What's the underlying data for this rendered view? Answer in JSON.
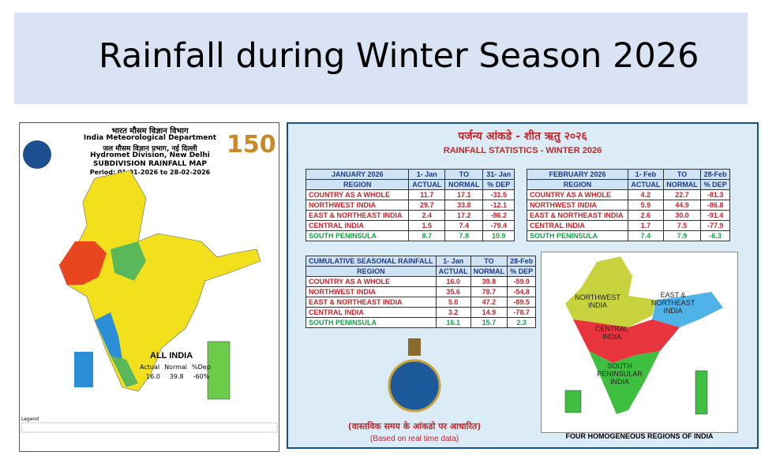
{
  "header": {
    "title": "Rainfall during Winter Season 2026"
  },
  "map_panel": {
    "hindi_org": "भारत मौसम विज्ञान विभाग",
    "org": "India Meteorological Department",
    "hindi_division": "जल मौसम विज्ञान प्रभाग, नई दिल्ली",
    "division": "Hydromet Division, New Delhi",
    "map_title": "SUBDIVISION RAINFALL MAP",
    "period": "Period: 01-01-2026 to 28-02-2026",
    "logo": "150",
    "all_india": {
      "label": "ALL INDIA",
      "columns": [
        "Actual",
        "Normal",
        "%Dep"
      ],
      "values": [
        "16.0",
        "39.8",
        "-60%"
      ]
    },
    "legend_title": "Legend"
  },
  "stats_panel": {
    "hindi_title": "पर्जन्य आंकडे - शीत ऋतु २०२६",
    "title": "RAINFALL STATISTICS -  WINTER 2026",
    "tables": [
      {
        "title": "JANUARY 2026",
        "from": "1- Jan",
        "to": "TO",
        "until": "31- Jan",
        "columns": [
          "REGION",
          "ACTUAL",
          "NORMAL",
          "% DEP"
        ],
        "rows": [
          [
            "COUNTRY AS A WHOLE",
            "11.7",
            "17.1",
            "-31.5"
          ],
          [
            "NORTHWEST INDIA",
            "29.7",
            "33.8",
            "-12.1"
          ],
          [
            "EAST & NORTHEAST INDIA",
            "2.4",
            "17.2",
            "-86.2"
          ],
          [
            "CENTRAL INDIA",
            "1.5",
            "7.4",
            "-79.4"
          ],
          [
            "SOUTH PENINSULA",
            "8.7",
            "7.8",
            "10.9"
          ]
        ]
      },
      {
        "title": "FEBRUARY 2026",
        "from": "1- Feb",
        "to": "TO",
        "until": "28-Feb",
        "columns": [
          "REGION",
          "ACTUAL",
          "NORMAL",
          "% DEP"
        ],
        "rows": [
          [
            "COUNTRY AS A WHOLE",
            "4.2",
            "22.7",
            "-81.3"
          ],
          [
            "NORTHWEST INDIA",
            "5.9",
            "44.9",
            "-86.8"
          ],
          [
            "EAST & NORTHEAST INDIA",
            "2.6",
            "30.0",
            "-91.4"
          ],
          [
            "CENTRAL INDIA",
            "1.7",
            "7.5",
            "-77.9"
          ],
          [
            "SOUTH PENINSULA",
            "7.4",
            "7.9",
            "-6.3"
          ]
        ]
      },
      {
        "title": "CUMULATIVE SEASONAL RAINFALL",
        "from": "1- Jan",
        "to": "TO",
        "until": "28-Feb",
        "columns": [
          "REGION",
          "ACTUAL",
          "NORMAL",
          "% DEP"
        ],
        "rows": [
          [
            "COUNTRY AS A WHOLE",
            "16.0",
            "39.8",
            "-59.9"
          ],
          [
            "NORTHWEST INDIA",
            "35.6",
            "78.7",
            "-54.8"
          ],
          [
            "EAST & NORTHEAST INDIA",
            "5.0",
            "47.2",
            "-89.5"
          ],
          [
            "CENTRAL INDIA",
            "3.2",
            "14.9",
            "-78.7"
          ],
          [
            "SOUTH PENINSULA",
            "16.1",
            "15.7",
            "2.3"
          ]
        ]
      }
    ],
    "region_map": {
      "labels": [
        "NORTHWEST INDIA",
        "EAST & NORTHEAST INDIA",
        "CENTRAL INDIA",
        "SOUTH PENINSULAR INDIA"
      ],
      "caption": "FOUR HOMOGENEOUS REGIONS OF INDIA"
    },
    "hindi_note": "(वास्तविक समय के आंकडो पर आधारित)",
    "note": "(Based on real time data)"
  }
}
